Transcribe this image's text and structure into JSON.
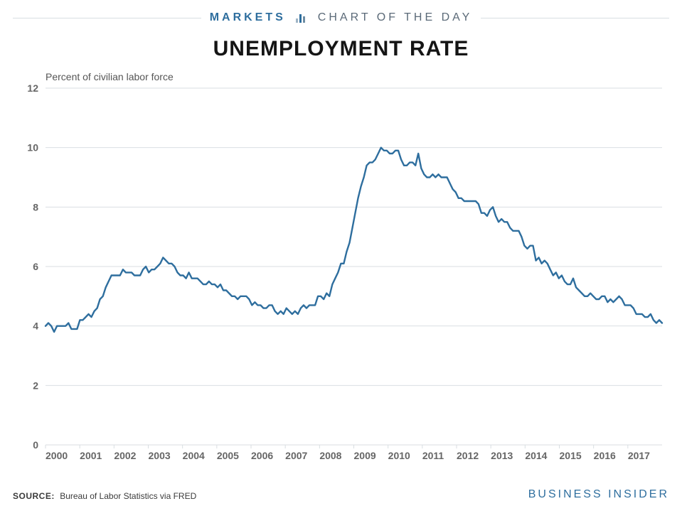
{
  "header": {
    "brand": "MARKETS",
    "brand_color": "#2e6e9e",
    "suffix": "CHART OF THE DAY",
    "suffix_color": "#5b6a78",
    "rule_color": "#d9dee2",
    "icon_bar_colors": [
      "#9fb5c6",
      "#2e6e9e",
      "#6e8da4"
    ],
    "icon_bar_heights": [
      6,
      12,
      9
    ]
  },
  "title": "UNEMPLOYMENT RATE",
  "subtitle": "Percent of civilian labor force",
  "chart": {
    "type": "line",
    "line_color": "#2e6e9e",
    "line_width": 2.4,
    "background_color": "#ffffff",
    "grid_color": "#d9dee2",
    "axis_font_color": "#666666",
    "axis_font_size": 14,
    "x": {
      "min": 2000.0,
      "max": 2018.0,
      "ticks": [
        2000,
        2001,
        2002,
        2003,
        2004,
        2005,
        2006,
        2007,
        2008,
        2009,
        2010,
        2011,
        2012,
        2013,
        2014,
        2015,
        2016,
        2017
      ],
      "tick_labels": [
        "2000",
        "2001",
        "2002",
        "2003",
        "2004",
        "2005",
        "2006",
        "2007",
        "2008",
        "2009",
        "2010",
        "2011",
        "2012",
        "2013",
        "2014",
        "2015",
        "2016",
        "2017"
      ]
    },
    "y": {
      "min": 0,
      "max": 12,
      "ticks": [
        0,
        2,
        4,
        6,
        8,
        10,
        12
      ],
      "tick_labels": [
        "0",
        "2",
        "4",
        "6",
        "8",
        "10",
        "12"
      ]
    },
    "series": [
      4.0,
      4.1,
      4.0,
      3.8,
      4.0,
      4.0,
      4.0,
      4.0,
      4.1,
      3.9,
      3.9,
      3.9,
      4.2,
      4.2,
      4.3,
      4.4,
      4.3,
      4.5,
      4.6,
      4.9,
      5.0,
      5.3,
      5.5,
      5.7,
      5.7,
      5.7,
      5.7,
      5.9,
      5.8,
      5.8,
      5.8,
      5.7,
      5.7,
      5.7,
      5.9,
      6.0,
      5.8,
      5.9,
      5.9,
      6.0,
      6.1,
      6.3,
      6.2,
      6.1,
      6.1,
      6.0,
      5.8,
      5.7,
      5.7,
      5.6,
      5.8,
      5.6,
      5.6,
      5.6,
      5.5,
      5.4,
      5.4,
      5.5,
      5.4,
      5.4,
      5.3,
      5.4,
      5.2,
      5.2,
      5.1,
      5.0,
      5.0,
      4.9,
      5.0,
      5.0,
      5.0,
      4.9,
      4.7,
      4.8,
      4.7,
      4.7,
      4.6,
      4.6,
      4.7,
      4.7,
      4.5,
      4.4,
      4.5,
      4.4,
      4.6,
      4.5,
      4.4,
      4.5,
      4.4,
      4.6,
      4.7,
      4.6,
      4.7,
      4.7,
      4.7,
      5.0,
      5.0,
      4.9,
      5.1,
      5.0,
      5.4,
      5.6,
      5.8,
      6.1,
      6.1,
      6.5,
      6.8,
      7.3,
      7.8,
      8.3,
      8.7,
      9.0,
      9.4,
      9.5,
      9.5,
      9.6,
      9.8,
      10.0,
      9.9,
      9.9,
      9.8,
      9.8,
      9.9,
      9.9,
      9.6,
      9.4,
      9.4,
      9.5,
      9.5,
      9.4,
      9.8,
      9.3,
      9.1,
      9.0,
      9.0,
      9.1,
      9.0,
      9.1,
      9.0,
      9.0,
      9.0,
      8.8,
      8.6,
      8.5,
      8.3,
      8.3,
      8.2,
      8.2,
      8.2,
      8.2,
      8.2,
      8.1,
      7.8,
      7.8,
      7.7,
      7.9,
      8.0,
      7.7,
      7.5,
      7.6,
      7.5,
      7.5,
      7.3,
      7.2,
      7.2,
      7.2,
      7.0,
      6.7,
      6.6,
      6.7,
      6.7,
      6.2,
      6.3,
      6.1,
      6.2,
      6.1,
      5.9,
      5.7,
      5.8,
      5.6,
      5.7,
      5.5,
      5.4,
      5.4,
      5.6,
      5.3,
      5.2,
      5.1,
      5.0,
      5.0,
      5.1,
      5.0,
      4.9,
      4.9,
      5.0,
      5.0,
      4.8,
      4.9,
      4.8,
      4.9,
      5.0,
      4.9,
      4.7,
      4.7,
      4.7,
      4.6,
      4.4,
      4.4,
      4.4,
      4.3,
      4.3,
      4.4,
      4.2,
      4.1,
      4.2,
      4.1
    ]
  },
  "footer": {
    "source_label": "SOURCE:",
    "source_text": "Bureau of Labor Statistics via FRED",
    "logo_text": "BUSINESS INSIDER",
    "logo_color": "#2e6e9e"
  }
}
